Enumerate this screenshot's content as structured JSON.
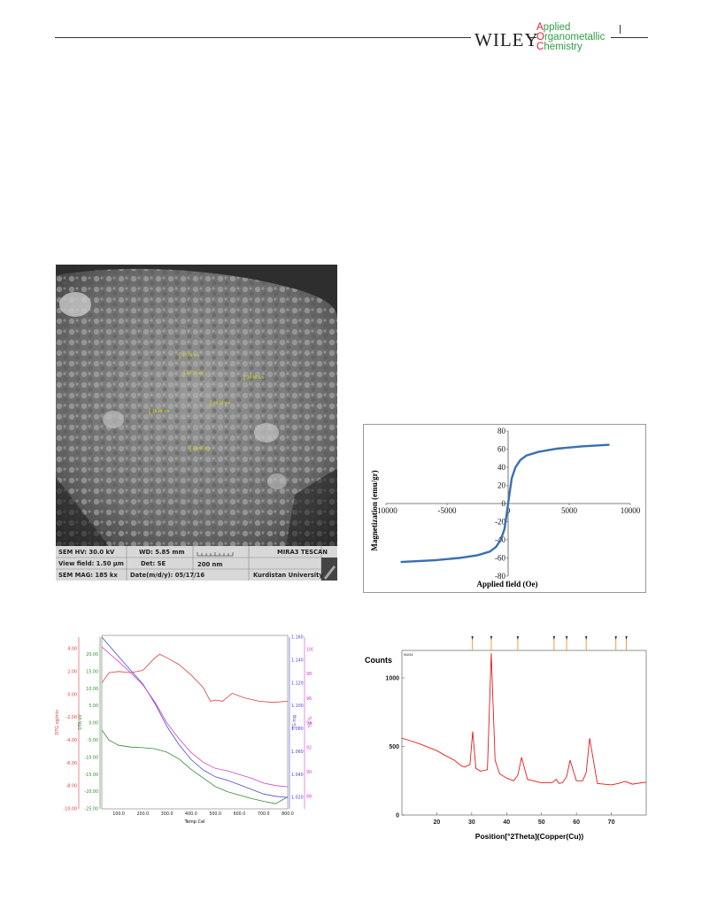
{
  "header": {
    "publisher": "WILEY",
    "journal_line1_cap": "A",
    "journal_line1_rest": "pplied",
    "journal_line2_cap": "O",
    "journal_line2_rest": "rganometallic",
    "journal_line3_cap": "C",
    "journal_line3_rest": "hemistry"
  },
  "colors": {
    "journal_green": "#2e9e44",
    "journal_red": "#d9222a",
    "vsm_line": "#3a6fb0",
    "xrd_line": "#e31b1b",
    "xrd_ref": "#f0a030",
    "dtg_red": "#d94040",
    "dta_green": "#2e8b2e",
    "tg_blue": "#4a4ad0",
    "tg_pct_magenta": "#d040d0"
  },
  "sem": {
    "measurements": [
      "37.76 nm",
      "27.51 nm",
      "29.96 nm",
      "29.26 nm",
      "26.49 nm",
      "28.67 nm"
    ],
    "info": {
      "hv": "SEM HV: 30.0 kV",
      "wd": "WD: 5.85 mm",
      "instrument": "MIRA3 TESCAN",
      "view": "View field: 1.50 µm",
      "det": "Det: SE",
      "scale": "200 nm",
      "mag": "SEM MAG: 185 kx",
      "date": "Date(m/d/y): 05/17/16",
      "inst": "Kurdistan University"
    }
  },
  "chart_data": [
    {
      "type": "line",
      "title": "",
      "xlabel": "Applied field (Oe)",
      "ylabel": "Magnetization (emu/gr)",
      "xlim": [
        -10000,
        10000
      ],
      "ylim": [
        -80,
        80
      ],
      "x_ticks": [
        "-10000",
        "-5000",
        "0",
        "5000",
        "10000"
      ],
      "y_ticks": [
        "80",
        "60",
        "40",
        "20",
        "0",
        "-20",
        "-40",
        "-60",
        "-80"
      ],
      "grid": false,
      "series": [
        {
          "x": [
            -8800,
            -6000,
            -4000,
            -2500,
            -1500,
            -1000,
            -600,
            -300,
            -100,
            0,
            100,
            300,
            600,
            1000,
            1500,
            2500,
            4000,
            6000,
            8300
          ],
          "y": [
            -64.5,
            -62.5,
            -60,
            -57,
            -53,
            -48,
            -40,
            -28,
            -10,
            0,
            10,
            28,
            40,
            48,
            53,
            57,
            60.5,
            63,
            64.8
          ]
        }
      ]
    },
    {
      "type": "line",
      "title": "",
      "xlabel": "Temp Cel",
      "ylabel": "DTG ug/min",
      "xlim": [
        30,
        800
      ],
      "x_ticks": [
        "100.0",
        "200.0",
        "300.0",
        "400.0",
        "500.0",
        "600.0",
        "700.0",
        "800.0"
      ],
      "axes": {
        "dtg": {
          "label": "DTG ug/min",
          "ticks": [
            "4.00",
            "2.00",
            "0.00",
            "-2.00",
            "-4.00",
            "-6.00",
            "-8.00",
            "-10.00"
          ],
          "ylim": [
            -10,
            5
          ]
        },
        "dta": {
          "label": "DTA uV",
          "ticks": [
            "20.00",
            "15.00",
            "10.00",
            "5.00",
            "0.00",
            "-5.00",
            "-10.00",
            "-15.00",
            "-20.00",
            "-25.00"
          ],
          "ylim": [
            -25,
            25
          ]
        },
        "tg": {
          "label": "TG mg",
          "ticks": [
            "1.160",
            "1.140",
            "1.120",
            "1.100",
            "1.080",
            "1.060",
            "1.040",
            "1.020"
          ],
          "ylim": [
            1.01,
            1.16
          ]
        },
        "tg_pct": {
          "label": "TG %",
          "ticks": [
            "100.0",
            "98.0",
            "96.0",
            "94.0",
            "92.0",
            "90.0",
            "88.0"
          ],
          "ylim": [
            87,
            101
          ]
        }
      },
      "series": [
        {
          "name": "DTG",
          "axis": "dtg",
          "x": [
            30,
            60,
            100,
            150,
            200,
            250,
            270,
            300,
            350,
            400,
            450,
            480,
            500,
            530,
            570,
            620,
            680,
            740,
            800
          ],
          "y": [
            1.0,
            1.9,
            2.0,
            1.9,
            2.1,
            3.2,
            3.5,
            3.2,
            2.6,
            1.7,
            0.6,
            -0.6,
            -0.5,
            -0.6,
            0.1,
            -0.3,
            -0.6,
            -0.7,
            -0.6
          ]
        },
        {
          "name": "DTA",
          "axis": "dta",
          "x": [
            30,
            60,
            100,
            150,
            200,
            250,
            300,
            350,
            400,
            450,
            500,
            550,
            600,
            650,
            700,
            750,
            800
          ],
          "y": [
            -2.0,
            -5.0,
            -6.5,
            -7.0,
            -7.2,
            -7.5,
            -8.5,
            -10.5,
            -13.5,
            -16.0,
            -18.5,
            -20.0,
            -21.0,
            -22.0,
            -22.8,
            -23.5,
            -21.5
          ]
        },
        {
          "name": "TG",
          "axis": "tg",
          "x": [
            30,
            100,
            150,
            200,
            250,
            300,
            350,
            400,
            450,
            500,
            550,
            600,
            650,
            700,
            750,
            800
          ],
          "y": [
            1.16,
            1.143,
            1.131,
            1.119,
            1.102,
            1.082,
            1.066,
            1.053,
            1.044,
            1.038,
            1.035,
            1.031,
            1.027,
            1.023,
            1.021,
            1.02
          ]
        },
        {
          "name": "TG %",
          "axis": "tg_pct",
          "x": [
            30,
            100,
            150,
            200,
            250,
            300,
            350,
            400,
            450,
            500,
            550,
            600,
            650,
            700,
            750,
            800
          ],
          "y": [
            100.2,
            99.0,
            98.1,
            97.1,
            95.7,
            94.0,
            92.7,
            91.6,
            90.8,
            90.3,
            90.1,
            89.8,
            89.5,
            89.1,
            88.9,
            88.8
          ]
        }
      ]
    },
    {
      "type": "line",
      "title": "",
      "xlabel": "Position[°2Theta](Copper(Cu))",
      "ylabel": "Counts",
      "xlim": [
        10,
        80
      ],
      "ylim": [
        0,
        1200
      ],
      "x_ticks": [
        "20",
        "30",
        "40",
        "50",
        "60",
        "70"
      ],
      "y_ticks": [
        "1000",
        "500",
        "0"
      ],
      "inset_label": "N1G4",
      "series": [
        {
          "x": [
            10,
            12,
            15,
            18,
            20,
            22,
            25,
            27,
            28,
            29.5,
            30.3,
            31.2,
            32.5,
            34.5,
            35.6,
            36.7,
            38,
            40,
            42,
            43.2,
            44.3,
            46,
            50,
            53,
            54.2,
            55,
            56,
            57.2,
            58.2,
            60,
            61.8,
            62.8,
            63.8,
            66,
            70,
            72,
            74,
            76,
            80
          ],
          "y": [
            560,
            545,
            520,
            490,
            470,
            440,
            400,
            360,
            350,
            370,
            610,
            340,
            320,
            330,
            1180,
            400,
            300,
            270,
            250,
            290,
            420,
            260,
            235,
            235,
            260,
            230,
            235,
            280,
            400,
            250,
            250,
            310,
            560,
            230,
            220,
            230,
            245,
            225,
            240
          ]
        }
      ],
      "reference_peaks": [
        30.2,
        35.6,
        43.2,
        53.6,
        57.2,
        62.8,
        71.3,
        74.3
      ]
    }
  ]
}
